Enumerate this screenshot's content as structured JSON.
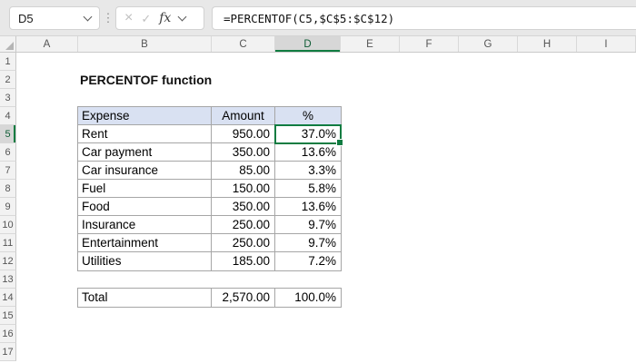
{
  "formula_bar": {
    "cell_reference": "D5",
    "formula": "=PERCENTOF(C5,$C$5:$C$12)",
    "icons": {
      "cancel": "×",
      "enter": "✓",
      "insert_function": "fx",
      "separator": "⋮"
    }
  },
  "grid": {
    "column_headers": [
      "A",
      "B",
      "C",
      "D",
      "E",
      "F",
      "G",
      "H",
      "I"
    ],
    "row_headers": [
      "1",
      "2",
      "3",
      "4",
      "5",
      "6",
      "7",
      "8",
      "9",
      "10",
      "11",
      "12",
      "13",
      "14",
      "15",
      "16",
      "17"
    ],
    "selected_column": "D",
    "selected_row": "5",
    "selected_cell": "D5"
  },
  "content": {
    "title": "PERCENTOF function",
    "table": {
      "columns": [
        "Expense",
        "Amount",
        "%"
      ],
      "rows": [
        {
          "expense": "Rent",
          "amount": "950.00",
          "pct": "37.0%"
        },
        {
          "expense": "Car payment",
          "amount": "350.00",
          "pct": "13.6%"
        },
        {
          "expense": "Car insurance",
          "amount": "85.00",
          "pct": "3.3%"
        },
        {
          "expense": "Fuel",
          "amount": "150.00",
          "pct": "5.8%"
        },
        {
          "expense": "Food",
          "amount": "350.00",
          "pct": "13.6%"
        },
        {
          "expense": "Insurance",
          "amount": "250.00",
          "pct": "9.7%"
        },
        {
          "expense": "Entertainment",
          "amount": "250.00",
          "pct": "9.7%"
        },
        {
          "expense": "Utilities",
          "amount": "185.00",
          "pct": "7.2%"
        }
      ],
      "total": {
        "expense": "Total",
        "amount": "2,570.00",
        "pct": "100.0%"
      }
    }
  },
  "colors": {
    "accent_green": "#107C41",
    "table_header_fill": "#D9E1F2",
    "table_border": "#A6A6A6"
  }
}
